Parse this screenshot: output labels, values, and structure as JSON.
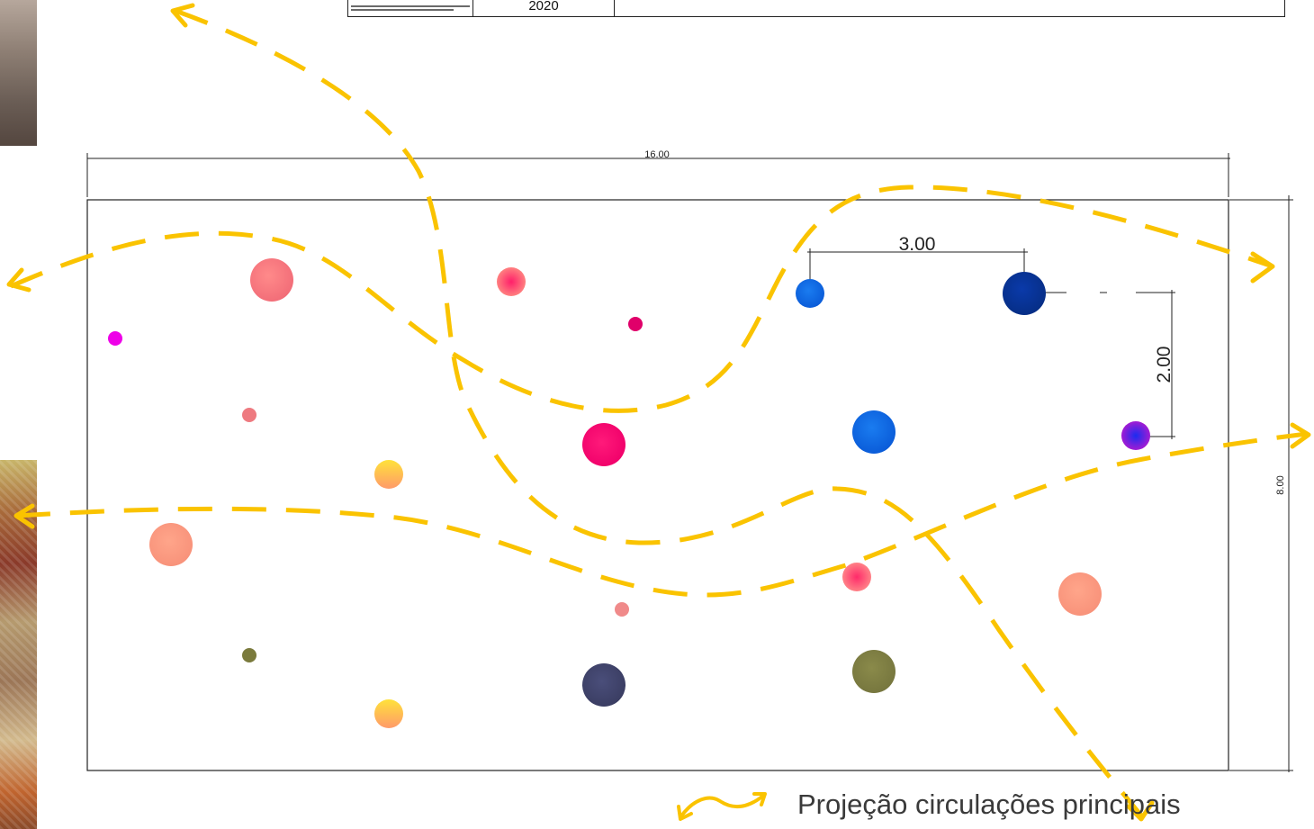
{
  "title_block": {
    "year": "2020"
  },
  "dimensions": {
    "overall_width": "16.00",
    "overall_height": "8.00",
    "spacing_horizontal": "3.00",
    "spacing_vertical": "2.00"
  },
  "colors": {
    "circulation_path": "#fac300",
    "drawing_lines": "#222222",
    "legend_text": "#3a3a3a"
  },
  "legend": {
    "icon": "curved-double-arrow-icon",
    "label": "Projeção circulações principais"
  }
}
